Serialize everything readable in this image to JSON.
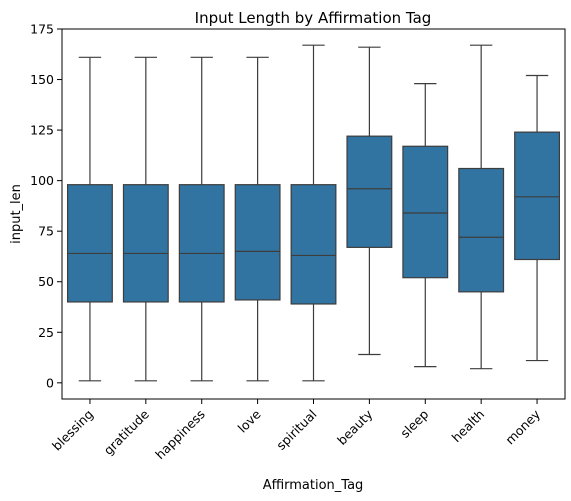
{
  "chart_data": {
    "type": "box",
    "title": "Input Length by Affirmation Tag",
    "xlabel": "Affirmation_Tag",
    "ylabel": "input_len",
    "ylim": [
      -8,
      175
    ],
    "yticks": [
      0,
      25,
      50,
      75,
      100,
      125,
      150,
      175
    ],
    "grid": false,
    "box_color": "#3274a1",
    "line_color": "#3d3d3d",
    "categories": [
      "blessing",
      "gratitude",
      "happiness",
      "love",
      "spiritual",
      "beauty",
      "sleep",
      "health",
      "money"
    ],
    "boxes": [
      {
        "category": "blessing",
        "min": 1,
        "q1": 40,
        "median": 64,
        "q3": 98,
        "max": 161
      },
      {
        "category": "gratitude",
        "min": 1,
        "q1": 40,
        "median": 64,
        "q3": 98,
        "max": 161
      },
      {
        "category": "happiness",
        "min": 1,
        "q1": 40,
        "median": 64,
        "q3": 98,
        "max": 161
      },
      {
        "category": "love",
        "min": 1,
        "q1": 41,
        "median": 65,
        "q3": 98,
        "max": 161
      },
      {
        "category": "spiritual",
        "min": 1,
        "q1": 39,
        "median": 63,
        "q3": 98,
        "max": 167
      },
      {
        "category": "beauty",
        "min": 14,
        "q1": 67,
        "median": 96,
        "q3": 122,
        "max": 166
      },
      {
        "category": "sleep",
        "min": 8,
        "q1": 52,
        "median": 84,
        "q3": 117,
        "max": 148
      },
      {
        "category": "health",
        "min": 7,
        "q1": 45,
        "median": 72,
        "q3": 106,
        "max": 167
      },
      {
        "category": "money",
        "min": 11,
        "q1": 61,
        "median": 92,
        "q3": 124,
        "max": 152
      }
    ]
  }
}
